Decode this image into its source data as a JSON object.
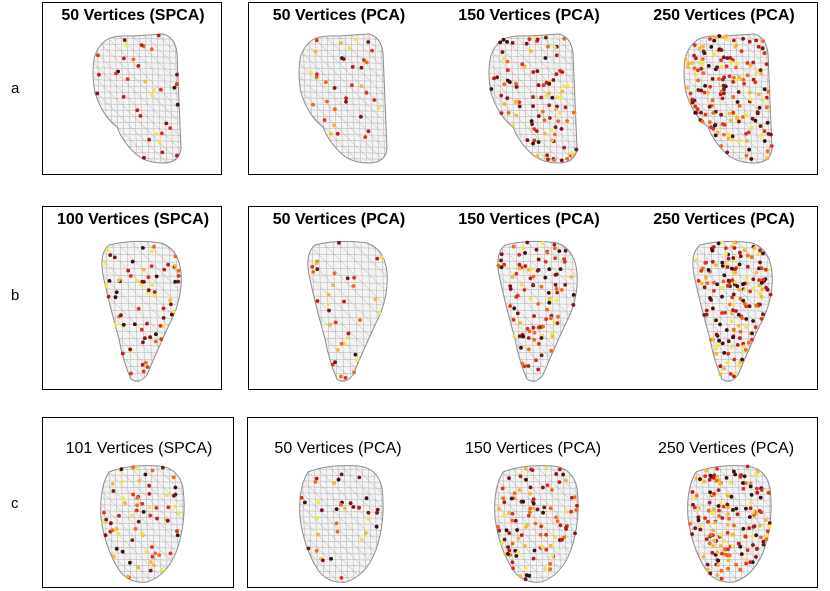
{
  "figure": {
    "rows": [
      {
        "label": "a",
        "spca": {
          "title": "50 Vertices (SPCA)",
          "shape": "wedge",
          "density": 50
        },
        "pca": [
          {
            "title": "50 Vertices (PCA)",
            "density": 50
          },
          {
            "title": "150 Vertices (PCA)",
            "density": 150
          },
          {
            "title": "250 Vertices (PCA)",
            "density": 250
          }
        ]
      },
      {
        "label": "b",
        "spca": {
          "title": "100 Vertices (SPCA)",
          "shape": "cone",
          "density": 100
        },
        "pca": [
          {
            "title": "50 Vertices (PCA)",
            "density": 50
          },
          {
            "title": "150 Vertices (PCA)",
            "density": 150
          },
          {
            "title": "250 Vertices (PCA)",
            "density": 250
          }
        ]
      },
      {
        "label": "c",
        "spca": {
          "title": "101 Vertices (SPCA)",
          "shape": "tooth",
          "density": 101
        },
        "pca": [
          {
            "title": "50 Vertices (PCA)",
            "density": 50
          },
          {
            "title": "150 Vertices (PCA)",
            "density": 150
          },
          {
            "title": "250 Vertices (PCA)",
            "density": 250
          }
        ]
      }
    ],
    "colors": {
      "mesh_stroke": "#8c8c8c",
      "mesh_fill": "#f4f4f4",
      "vertex_palette": [
        "#3a1010",
        "#7a1616",
        "#b81c1c",
        "#e0301e",
        "#f06a1a",
        "#f7b733",
        "#f2e64a"
      ]
    }
  }
}
